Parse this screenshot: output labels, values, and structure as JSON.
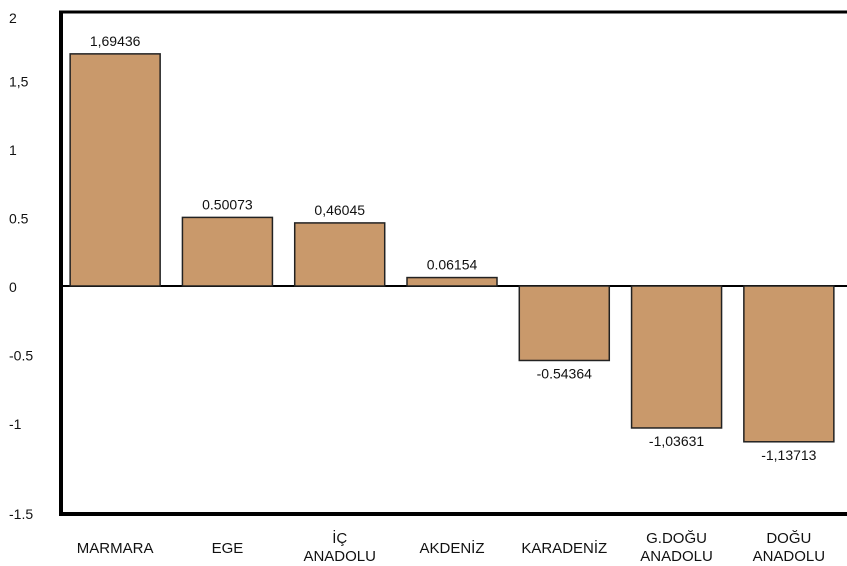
{
  "chart_data": {
    "type": "bar",
    "title": "",
    "xlabel": "",
    "ylabel": "",
    "ylim": [
      -1.5,
      2
    ],
    "yticks": [
      2,
      1.5,
      1,
      0.5,
      0,
      -0.5,
      -1,
      -1.5
    ],
    "ytick_labels": [
      "2",
      "1,5",
      "1",
      "0.5",
      "0",
      "-0.5",
      "-1",
      "-1.5"
    ],
    "categories": [
      [
        "MARMARA"
      ],
      [
        "EGE"
      ],
      [
        "İÇ",
        "ANADOLU"
      ],
      [
        "AKDENİZ"
      ],
      [
        "KARADENİZ"
      ],
      [
        "G.DOĞU",
        "ANADOLU"
      ],
      [
        "DOĞU",
        "ANADOLU"
      ]
    ],
    "values": [
      1.69436,
      0.50073,
      0.46045,
      0.06154,
      -0.54364,
      -1.03631,
      -1.13713
    ],
    "value_labels": [
      "1,69436",
      "0.50073",
      "0,46045",
      "0.06154",
      "-0.54364",
      "-1,03631",
      "-1,13713"
    ],
    "colors": {
      "bar": "#c9996b",
      "bar_stroke": "#222222",
      "axis": "#000000"
    },
    "grid": false,
    "legend": "none"
  }
}
